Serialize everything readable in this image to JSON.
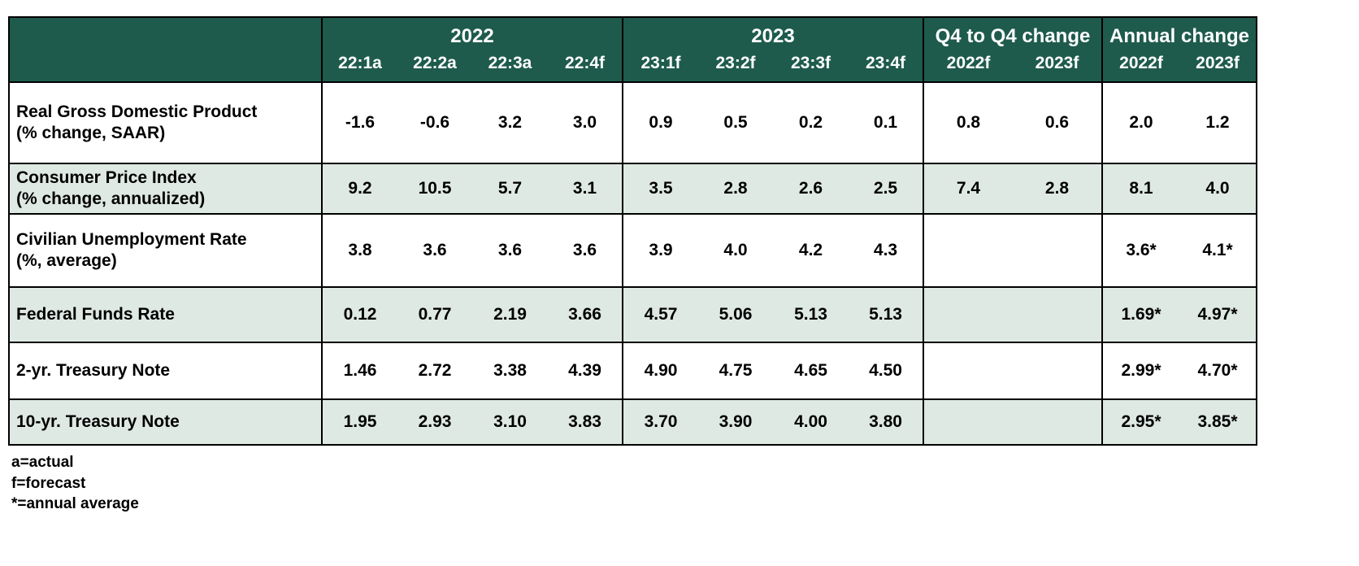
{
  "colors": {
    "header_bg": "#1e5b4c",
    "header_text": "#ffffff",
    "shaded_row_bg": "#dfe9e4",
    "border": "#000000"
  },
  "chart_data": {
    "type": "table",
    "title": "Economic forecast table",
    "groups": [
      {
        "label": "2022",
        "subcols": [
          "22:1a",
          "22:2a",
          "22:3a",
          "22:4f"
        ]
      },
      {
        "label": "2023",
        "subcols": [
          "23:1f",
          "23:2f",
          "23:3f",
          "23:4f"
        ]
      },
      {
        "label": "Q4 to Q4 change",
        "subcols": [
          "2022f",
          "2023f"
        ]
      },
      {
        "label": "Annual change",
        "subcols": [
          "2022f",
          "2023f"
        ]
      }
    ],
    "rows": [
      {
        "label": "Real Gross Domestic Product",
        "sublabel": "(% change, SAAR)",
        "shaded": false,
        "values": [
          "-1.6",
          "-0.6",
          "3.2",
          "3.0",
          "0.9",
          "0.5",
          "0.2",
          "0.1",
          "0.8",
          "0.6",
          "2.0",
          "1.2"
        ]
      },
      {
        "label": "Consumer Price Index",
        "sublabel": "(% change, annualized)",
        "shaded": true,
        "values": [
          "9.2",
          "10.5",
          "5.7",
          "3.1",
          "3.5",
          "2.8",
          "2.6",
          "2.5",
          "7.4",
          "2.8",
          "8.1",
          "4.0"
        ]
      },
      {
        "label": "Civilian Unemployment Rate",
        "sublabel": "(%, average)",
        "shaded": false,
        "values": [
          "3.8",
          "3.6",
          "3.6",
          "3.6",
          "3.9",
          "4.0",
          "4.2",
          "4.3",
          "",
          "",
          "3.6*",
          "4.1*"
        ]
      },
      {
        "label": "Federal Funds Rate",
        "sublabel": "",
        "shaded": true,
        "values": [
          "0.12",
          "0.77",
          "2.19",
          "3.66",
          "4.57",
          "5.06",
          "5.13",
          "5.13",
          "",
          "",
          "1.69*",
          "4.97*"
        ]
      },
      {
        "label": "2-yr. Treasury Note",
        "sublabel": "",
        "shaded": false,
        "values": [
          "1.46",
          "2.72",
          "3.38",
          "4.39",
          "4.90",
          "4.75",
          "4.65",
          "4.50",
          "",
          "",
          "2.99*",
          "4.70*"
        ]
      },
      {
        "label": "10-yr. Treasury Note",
        "sublabel": "",
        "shaded": true,
        "values": [
          "1.95",
          "2.93",
          "3.10",
          "3.83",
          "3.70",
          "3.90",
          "4.00",
          "3.80",
          "",
          "",
          "2.95*",
          "3.85*"
        ]
      }
    ],
    "footnotes": [
      "a=actual",
      "f=forecast",
      "*=annual average"
    ]
  }
}
